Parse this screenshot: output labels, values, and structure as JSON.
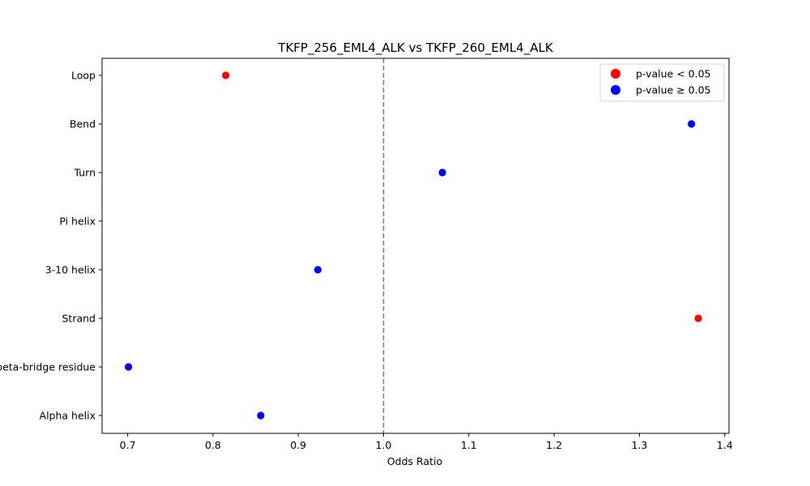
{
  "chart_data": {
    "type": "scatter",
    "title": "TKFP_256_EML4_ALK vs TKFP_260_EML4_ALK",
    "xlabel": "Odds Ratio",
    "ylabel": "",
    "xlim": [
      0.67,
      1.405
    ],
    "xticks": [
      0.7,
      0.8,
      0.9,
      1.0,
      1.1,
      1.2,
      1.3,
      1.4
    ],
    "xtick_labels": [
      "0.7",
      "0.8",
      "0.9",
      "1.0",
      "1.1",
      "1.2",
      "1.3",
      "1.4"
    ],
    "categories": [
      "Loop",
      "Bend",
      "Turn",
      "Pi helix",
      "3-10 helix",
      "Strand",
      "Isolated beta-bridge residue",
      "Alpha helix"
    ],
    "points": [
      {
        "category": "Loop",
        "odds_ratio": 0.815,
        "significant": true
      },
      {
        "category": "Bend",
        "odds_ratio": 1.361,
        "significant": false
      },
      {
        "category": "Turn",
        "odds_ratio": 1.069,
        "significant": false
      },
      {
        "category": "Pi helix",
        "odds_ratio": null,
        "significant": null
      },
      {
        "category": "3-10 helix",
        "odds_ratio": 0.923,
        "significant": false
      },
      {
        "category": "Strand",
        "odds_ratio": 1.369,
        "significant": true
      },
      {
        "category": "Isolated beta-bridge residue",
        "odds_ratio": 0.701,
        "significant": false
      },
      {
        "category": "Alpha helix",
        "odds_ratio": 0.856,
        "significant": false
      }
    ],
    "reference_line": {
      "x": 1.0,
      "style": "dashed",
      "color": "#808080"
    },
    "legend": {
      "position": "upper right",
      "entries": [
        {
          "label": "p-value < 0.05",
          "color": "#ff0000"
        },
        {
          "label": "p-value ≥ 0.05",
          "color": "#0000ff"
        }
      ]
    },
    "grid": false
  }
}
